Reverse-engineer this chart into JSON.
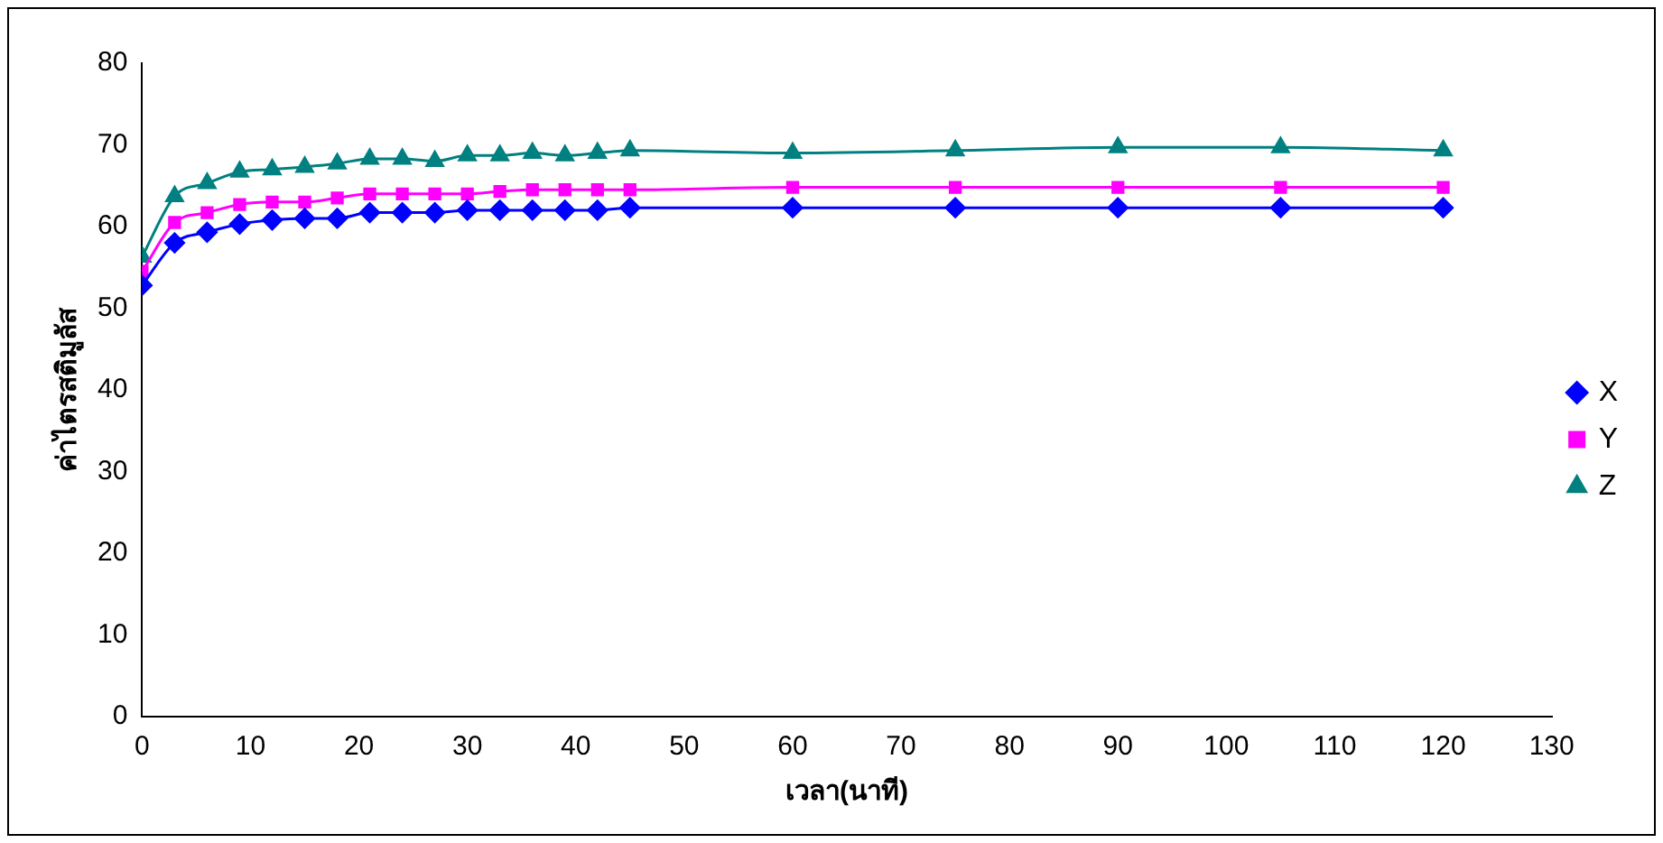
{
  "chart_data": {
    "type": "line",
    "xlabel": "เวลา(นาที)",
    "ylabel": "ค่าไตรสติมูลัส",
    "x": [
      0,
      3,
      6,
      9,
      12,
      15,
      18,
      21,
      24,
      27,
      30,
      33,
      36,
      39,
      42,
      45,
      60,
      75,
      90,
      105,
      120
    ],
    "xlim": [
      0,
      130
    ],
    "xticks": [
      0,
      10,
      20,
      30,
      40,
      50,
      60,
      70,
      80,
      90,
      100,
      110,
      120,
      130
    ],
    "ylim": [
      0,
      80
    ],
    "yticks": [
      0,
      10,
      20,
      30,
      40,
      50,
      60,
      70,
      80
    ],
    "grid": false,
    "legend": "right",
    "series": [
      {
        "name": "X",
        "color": "#0000ff",
        "marker": "diamond",
        "values": [
          52.8,
          58,
          59.3,
          60.3,
          60.8,
          61,
          61,
          61.7,
          61.7,
          61.7,
          62,
          62,
          62,
          62,
          62,
          62.3,
          62.3,
          62.3,
          62.3,
          62.3,
          62.3
        ]
      },
      {
        "name": "Y",
        "color": "#ff00ff",
        "marker": "square",
        "values": [
          54.5,
          60.5,
          61.7,
          62.7,
          63,
          63,
          63.5,
          64,
          64,
          64,
          64,
          64.3,
          64.5,
          64.5,
          64.5,
          64.5,
          64.8,
          64.8,
          64.8,
          64.8,
          64.8
        ]
      },
      {
        "name": "Z",
        "color": "#008080",
        "marker": "triangle",
        "values": [
          56.3,
          63.7,
          65.3,
          66.7,
          67,
          67.3,
          67.7,
          68.3,
          68.3,
          68,
          68.7,
          68.7,
          69,
          68.7,
          69,
          69.3,
          69,
          69.3,
          69.7,
          69.7,
          69.3
        ]
      }
    ]
  }
}
